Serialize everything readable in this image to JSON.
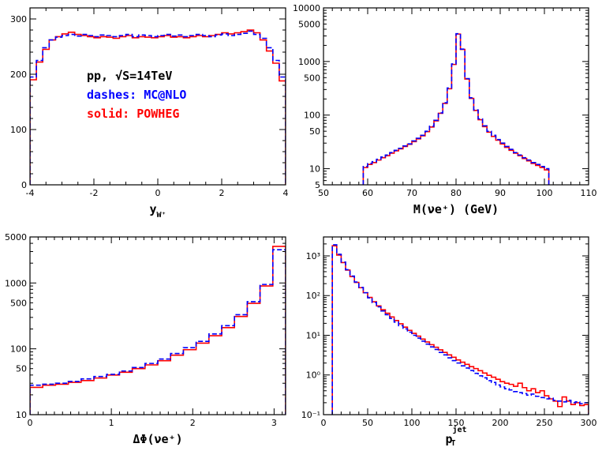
{
  "chart_data": [
    {
      "type": "line",
      "panel": "top-left",
      "xlabel_main": "y",
      "xlabel_sub": "W⁺",
      "xlim": [
        -4,
        4
      ],
      "ylim": [
        0,
        320
      ],
      "yscale": "linear",
      "xticks": [
        -4,
        -2,
        0,
        2,
        4
      ],
      "yticks": [
        0,
        100,
        200,
        300
      ],
      "annotations": [
        {
          "text": "pp, √S=14TeV",
          "color": "#000000"
        },
        {
          "text": "dashes: MC@NLO",
          "color": "#0000ff"
        },
        {
          "text": "solid: POWHEG",
          "color": "#ff0000"
        }
      ],
      "series": [
        {
          "style": "dashed",
          "color": "#0000ff",
          "edges": [
            -4,
            -3.8,
            -3.6,
            -3.4,
            -3.2,
            -3.0,
            -2.8,
            -2.6,
            -2.4,
            -2.2,
            -2.0,
            -1.8,
            -1.6,
            -1.4,
            -1.2,
            -1.0,
            -0.8,
            -0.6,
            -0.4,
            -0.2,
            0,
            0.2,
            0.4,
            0.6,
            0.8,
            1.0,
            1.2,
            1.4,
            1.6,
            1.8,
            2.0,
            2.2,
            2.4,
            2.6,
            2.8,
            3.0,
            3.2,
            3.4,
            3.6,
            3.8,
            4.0
          ],
          "values": [
            195,
            225,
            248,
            262,
            267,
            270,
            272,
            269,
            272,
            270,
            268,
            271,
            270,
            268,
            270,
            272,
            268,
            271,
            270,
            268,
            270,
            272,
            269,
            271,
            268,
            270,
            272,
            270,
            268,
            271,
            273,
            270,
            272,
            274,
            278,
            272,
            265,
            248,
            225,
            195
          ]
        },
        {
          "style": "solid",
          "color": "#ff0000",
          "edges": [
            -4,
            -3.8,
            -3.6,
            -3.4,
            -3.2,
            -3.0,
            -2.8,
            -2.6,
            -2.4,
            -2.2,
            -2.0,
            -1.8,
            -1.6,
            -1.4,
            -1.2,
            -1.0,
            -0.8,
            -0.6,
            -0.4,
            -0.2,
            0,
            0.2,
            0.4,
            0.6,
            0.8,
            1.0,
            1.2,
            1.4,
            1.6,
            1.8,
            2.0,
            2.2,
            2.4,
            2.6,
            2.8,
            3.0,
            3.2,
            3.4,
            3.6,
            3.8,
            4.0
          ],
          "values": [
            190,
            222,
            245,
            262,
            268,
            273,
            276,
            272,
            270,
            268,
            266,
            268,
            267,
            265,
            268,
            270,
            266,
            268,
            267,
            266,
            268,
            270,
            267,
            268,
            266,
            268,
            270,
            268,
            270,
            272,
            275,
            273,
            275,
            277,
            280,
            275,
            262,
            242,
            220,
            188
          ]
        }
      ]
    },
    {
      "type": "line",
      "panel": "top-right",
      "xlabel_main": "M(νe⁺) (GeV)",
      "xlim": [
        50,
        110
      ],
      "ylim": [
        5,
        10000
      ],
      "yscale": "log",
      "xticks": [
        50,
        60,
        70,
        80,
        90,
        100,
        110
      ],
      "yticks": [
        5,
        10,
        50,
        100,
        500,
        1000,
        5000,
        10000
      ],
      "series": [
        {
          "style": "dashed",
          "color": "#0000ff",
          "edges": [
            59,
            60,
            61,
            62,
            63,
            64,
            65,
            66,
            67,
            68,
            69,
            70,
            71,
            72,
            73,
            74,
            75,
            76,
            77,
            78,
            79,
            80,
            81,
            82,
            83,
            84,
            85,
            86,
            87,
            88,
            89,
            90,
            91,
            92,
            93,
            94,
            95,
            96,
            97,
            98,
            99,
            100,
            101
          ],
          "values": [
            11,
            12.5,
            13.5,
            15,
            16.5,
            18,
            20,
            22,
            24,
            26.5,
            29,
            33,
            37,
            42,
            50,
            62,
            80,
            110,
            170,
            320,
            900,
            3300,
            1700,
            480,
            210,
            125,
            85,
            63,
            50,
            42,
            35,
            30,
            26,
            23,
            20,
            18,
            16,
            14.5,
            13,
            12,
            11,
            10
          ]
        },
        {
          "style": "solid",
          "color": "#ff0000",
          "edges": [
            59,
            60,
            61,
            62,
            63,
            64,
            65,
            66,
            67,
            68,
            69,
            70,
            71,
            72,
            73,
            74,
            75,
            76,
            77,
            78,
            79,
            80,
            81,
            82,
            83,
            84,
            85,
            86,
            87,
            88,
            89,
            90,
            91,
            92,
            93,
            94,
            95,
            96,
            97,
            98,
            99,
            100,
            101
          ],
          "values": [
            10.5,
            12,
            13,
            14.5,
            16,
            17.5,
            19.5,
            21.5,
            23.5,
            26,
            28.5,
            32,
            36,
            41,
            49,
            60,
            78,
            108,
            165,
            310,
            880,
            3250,
            1680,
            470,
            205,
            122,
            82,
            61,
            48,
            40,
            34,
            29,
            25,
            22,
            19.5,
            17.5,
            15.5,
            14,
            12.5,
            11.5,
            10.5,
            9.5
          ]
        }
      ]
    },
    {
      "type": "line",
      "panel": "bottom-left",
      "xlabel_main": "ΔΦ(νe⁺)",
      "xlim": [
        0,
        3.1416
      ],
      "ylim": [
        10,
        5000
      ],
      "yscale": "log",
      "xticks": [
        0,
        1,
        2,
        3
      ],
      "yticks": [
        10,
        50,
        100,
        500,
        1000,
        5000
      ],
      "series": [
        {
          "style": "dashed",
          "color": "#0000ff",
          "edges": [
            0,
            0.1571,
            0.3142,
            0.4712,
            0.6283,
            0.7854,
            0.9425,
            1.0996,
            1.2566,
            1.4137,
            1.5708,
            1.7279,
            1.885,
            2.042,
            2.1991,
            2.3562,
            2.5133,
            2.6704,
            2.8274,
            2.9845,
            3.1416
          ],
          "values": [
            28,
            29,
            30,
            32,
            35,
            38,
            41,
            46,
            52,
            60,
            70,
            85,
            104,
            130,
            168,
            225,
            330,
            520,
            950,
            3200
          ]
        },
        {
          "style": "solid",
          "color": "#ff0000",
          "edges": [
            0,
            0.1571,
            0.3142,
            0.4712,
            0.6283,
            0.7854,
            0.9425,
            1.0996,
            1.2566,
            1.4137,
            1.5708,
            1.7279,
            1.885,
            2.042,
            2.1991,
            2.3562,
            2.5133,
            2.6704,
            2.8274,
            2.9845,
            3.1416
          ],
          "values": [
            26,
            28,
            29,
            31,
            33,
            36,
            40,
            44,
            50,
            57,
            66,
            80,
            97,
            122,
            158,
            210,
            310,
            490,
            900,
            3600
          ]
        }
      ]
    },
    {
      "type": "line",
      "panel": "bottom-right",
      "xlabel_main": "p",
      "xlabel_sub_t": "T",
      "xlabel_sup": "jet",
      "xlim": [
        0,
        300
      ],
      "ylim": [
        0.1,
        3000
      ],
      "yscale": "log",
      "xticks": [
        0,
        50,
        100,
        150,
        200,
        250,
        300
      ],
      "yticks": [
        0.1,
        1,
        10,
        100,
        1000
      ],
      "yticklabels": [
        "10⁻¹",
        "10⁰",
        "10¹",
        "10²",
        "10³"
      ],
      "series": [
        {
          "style": "dashed",
          "color": "#0000ff",
          "edges": [
            10,
            15,
            20,
            25,
            30,
            35,
            40,
            45,
            50,
            55,
            60,
            65,
            70,
            75,
            80,
            85,
            90,
            95,
            100,
            105,
            110,
            115,
            120,
            125,
            130,
            135,
            140,
            145,
            150,
            155,
            160,
            165,
            170,
            175,
            180,
            185,
            190,
            195,
            200,
            205,
            210,
            215,
            220,
            225,
            230,
            235,
            240,
            245,
            250,
            255,
            260,
            265,
            270,
            275,
            280,
            285,
            290,
            295,
            300
          ],
          "values": [
            1900,
            1100,
            700,
            450,
            310,
            220,
            160,
            118,
            88,
            67,
            52,
            41,
            33,
            26.5,
            21.5,
            17.5,
            14.5,
            12,
            10,
            8.5,
            7.1,
            6.0,
            5.1,
            4.4,
            3.7,
            3.2,
            2.7,
            2.3,
            2.0,
            1.7,
            1.5,
            1.3,
            1.1,
            0.95,
            0.85,
            0.72,
            0.65,
            0.56,
            0.5,
            0.45,
            0.42,
            0.38,
            0.36,
            0.34,
            0.31,
            0.33,
            0.29,
            0.27,
            0.25,
            0.26,
            0.23,
            0.22,
            0.21,
            0.23,
            0.2,
            0.21,
            0.19,
            0.2
          ]
        },
        {
          "style": "solid",
          "color": "#ff0000",
          "edges": [
            10,
            15,
            20,
            25,
            30,
            35,
            40,
            45,
            50,
            55,
            60,
            65,
            70,
            75,
            80,
            85,
            90,
            95,
            100,
            105,
            110,
            115,
            120,
            125,
            130,
            135,
            140,
            145,
            150,
            155,
            160,
            165,
            170,
            175,
            180,
            185,
            190,
            195,
            200,
            205,
            210,
            215,
            220,
            225,
            230,
            235,
            240,
            245,
            250,
            255,
            260,
            265,
            270,
            275,
            280,
            285,
            290,
            295,
            300
          ],
          "values": [
            1800,
            1050,
            680,
            440,
            300,
            215,
            158,
            118,
            90,
            70,
            55,
            44,
            36,
            29,
            23.5,
            19.5,
            16,
            13.3,
            11.2,
            9.5,
            8.0,
            6.8,
            5.8,
            5.0,
            4.3,
            3.7,
            3.2,
            2.8,
            2.4,
            2.1,
            1.85,
            1.62,
            1.45,
            1.28,
            1.12,
            0.98,
            0.88,
            0.78,
            0.68,
            0.62,
            0.58,
            0.52,
            0.62,
            0.48,
            0.4,
            0.45,
            0.36,
            0.4,
            0.3,
            0.25,
            0.22,
            0.16,
            0.28,
            0.22,
            0.18,
            0.2,
            0.17,
            0.18
          ]
        }
      ]
    }
  ]
}
